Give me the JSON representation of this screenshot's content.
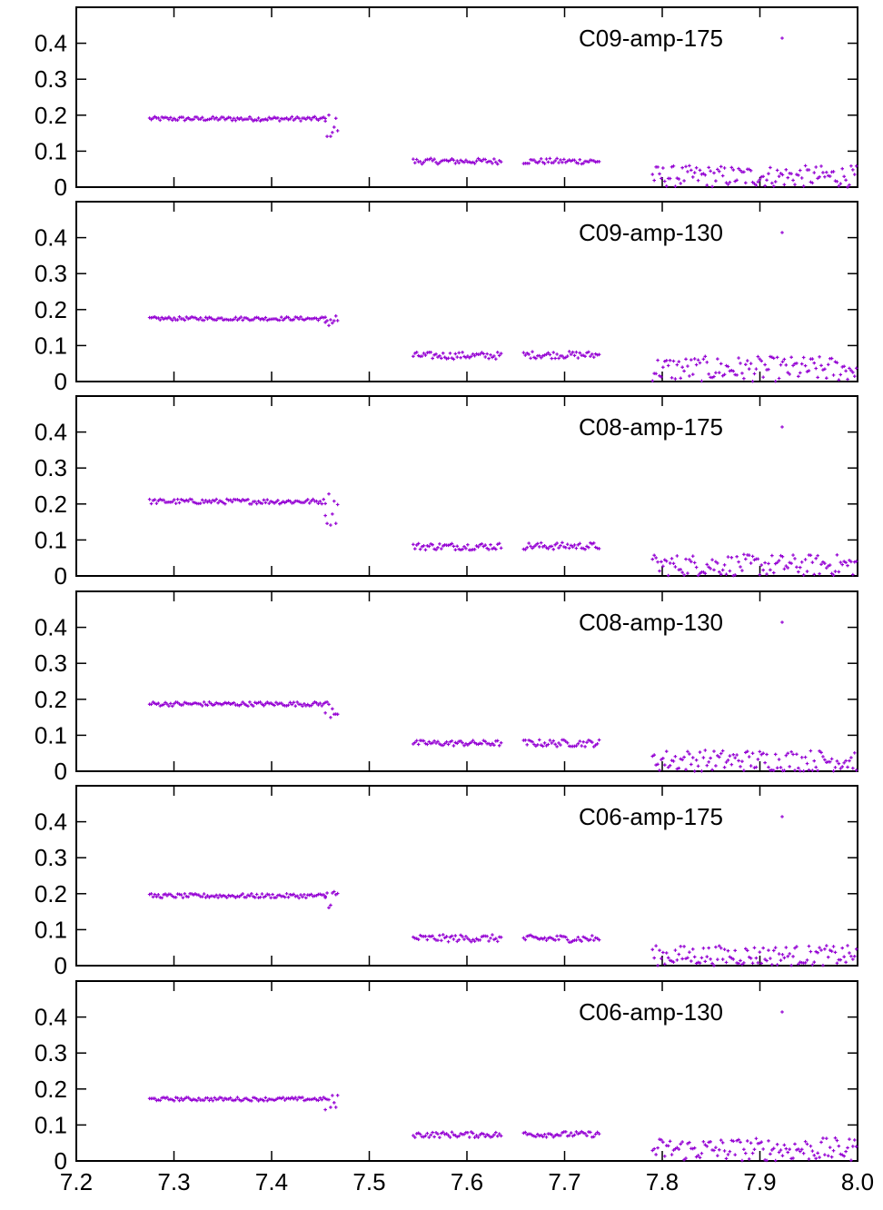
{
  "chart_data": {
    "type": "scatter",
    "layout": "stacked-panels",
    "xlim": [
      7.2,
      8.0
    ],
    "ylim": [
      0,
      0.5
    ],
    "x_ticks": [
      "7.2",
      "7.3",
      "7.4",
      "7.5",
      "7.6",
      "7.7",
      "7.8",
      "7.9",
      "8.0"
    ],
    "y_ticks": [
      "0",
      "0.1",
      "0.2",
      "0.3",
      "0.4"
    ],
    "point_color": "#9400d3",
    "legend_position": "top-right",
    "grid": false,
    "panels": [
      {
        "legend": "C09-amp-175",
        "segments": [
          {
            "x_start": 7.275,
            "x_end": 7.455,
            "mean": 0.19,
            "jitter": 0.006
          },
          {
            "x_start": 7.455,
            "x_end": 7.468,
            "mean": 0.17,
            "jitter": 0.035
          },
          {
            "x_start": 7.545,
            "x_end": 7.635,
            "mean": 0.072,
            "jitter": 0.008
          },
          {
            "x_start": 7.658,
            "x_end": 7.737,
            "mean": 0.072,
            "jitter": 0.008
          },
          {
            "x_start": 7.79,
            "x_end": 8.0,
            "mean": 0.03,
            "jitter": 0.03
          }
        ]
      },
      {
        "legend": "C09-amp-130",
        "segments": [
          {
            "x_start": 7.275,
            "x_end": 7.455,
            "mean": 0.175,
            "jitter": 0.005
          },
          {
            "x_start": 7.455,
            "x_end": 7.468,
            "mean": 0.17,
            "jitter": 0.02
          },
          {
            "x_start": 7.545,
            "x_end": 7.635,
            "mean": 0.072,
            "jitter": 0.01
          },
          {
            "x_start": 7.658,
            "x_end": 7.737,
            "mean": 0.074,
            "jitter": 0.01
          },
          {
            "x_start": 7.79,
            "x_end": 8.0,
            "mean": 0.035,
            "jitter": 0.035
          }
        ]
      },
      {
        "legend": "C08-amp-175",
        "segments": [
          {
            "x_start": 7.275,
            "x_end": 7.455,
            "mean": 0.207,
            "jitter": 0.007
          },
          {
            "x_start": 7.455,
            "x_end": 7.468,
            "mean": 0.19,
            "jitter": 0.05
          },
          {
            "x_start": 7.545,
            "x_end": 7.635,
            "mean": 0.082,
            "jitter": 0.01
          },
          {
            "x_start": 7.658,
            "x_end": 7.737,
            "mean": 0.083,
            "jitter": 0.01
          },
          {
            "x_start": 7.79,
            "x_end": 8.0,
            "mean": 0.03,
            "jitter": 0.03
          }
        ]
      },
      {
        "legend": "C08-amp-130",
        "segments": [
          {
            "x_start": 7.275,
            "x_end": 7.455,
            "mean": 0.187,
            "jitter": 0.006
          },
          {
            "x_start": 7.455,
            "x_end": 7.468,
            "mean": 0.175,
            "jitter": 0.03
          },
          {
            "x_start": 7.545,
            "x_end": 7.635,
            "mean": 0.078,
            "jitter": 0.008
          },
          {
            "x_start": 7.658,
            "x_end": 7.737,
            "mean": 0.078,
            "jitter": 0.01
          },
          {
            "x_start": 7.79,
            "x_end": 8.0,
            "mean": 0.03,
            "jitter": 0.03
          }
        ]
      },
      {
        "legend": "C06-amp-175",
        "segments": [
          {
            "x_start": 7.275,
            "x_end": 7.455,
            "mean": 0.194,
            "jitter": 0.006
          },
          {
            "x_start": 7.455,
            "x_end": 7.468,
            "mean": 0.19,
            "jitter": 0.03
          },
          {
            "x_start": 7.545,
            "x_end": 7.635,
            "mean": 0.076,
            "jitter": 0.01
          },
          {
            "x_start": 7.658,
            "x_end": 7.737,
            "mean": 0.075,
            "jitter": 0.01
          },
          {
            "x_start": 7.79,
            "x_end": 8.0,
            "mean": 0.028,
            "jitter": 0.028
          }
        ]
      },
      {
        "legend": "C06-amp-130",
        "segments": [
          {
            "x_start": 7.275,
            "x_end": 7.455,
            "mean": 0.172,
            "jitter": 0.005
          },
          {
            "x_start": 7.455,
            "x_end": 7.468,
            "mean": 0.16,
            "jitter": 0.025
          },
          {
            "x_start": 7.545,
            "x_end": 7.635,
            "mean": 0.073,
            "jitter": 0.008
          },
          {
            "x_start": 7.658,
            "x_end": 7.737,
            "mean": 0.074,
            "jitter": 0.008
          },
          {
            "x_start": 7.79,
            "x_end": 8.0,
            "mean": 0.032,
            "jitter": 0.032
          }
        ]
      }
    ]
  }
}
